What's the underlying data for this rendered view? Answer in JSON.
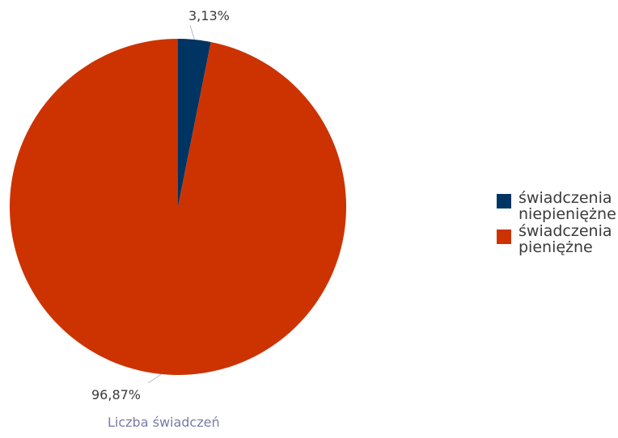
{
  "chart_data": {
    "type": "pie",
    "categories": [
      "świadczenia niepieniężne",
      "świadczenia pieniężne"
    ],
    "values": [
      3.13,
      96.87
    ],
    "data_labels": [
      "3,13%",
      "96,87%"
    ],
    "colors": [
      "#003462",
      "#cc3300"
    ],
    "legend": {
      "position": "right",
      "entries": [
        {
          "line1": "świadczenia",
          "line2": "niepieniężne",
          "color": "#003462"
        },
        {
          "line1": "świadczenia",
          "line2": "pieniężne",
          "color": "#cc3300"
        }
      ]
    },
    "xlabel": "Liczba świadczeń",
    "label_color": "#3a3a3a",
    "caption_color": "#7a7aa8"
  }
}
